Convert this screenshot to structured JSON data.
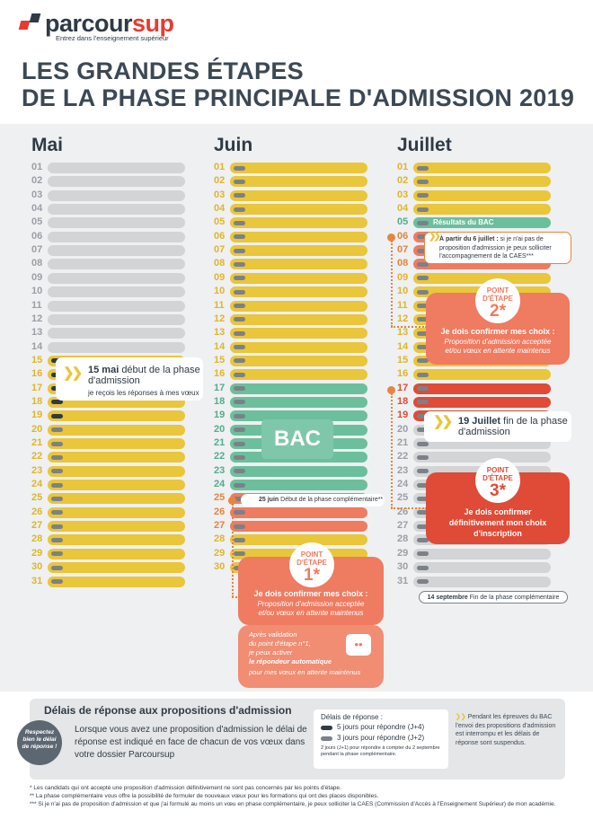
{
  "header": {
    "logo_part1": "parcour",
    "logo_part2": "sup",
    "logo_tagline": "Entrez dans l'enseignement supérieur",
    "title_line1": "LES GRANDES ÉTAPES",
    "title_line2": "DE LA PHASE PRINCIPALE D'ADMISSION 2019"
  },
  "colors": {
    "grey": "#d2d4d6",
    "dark_grey": "#7b8189",
    "yellow": "#e9c63a",
    "green": "#6cbf9c",
    "salmon": "#ef7b60",
    "red": "#df4b36",
    "text": "#2f3a45"
  },
  "months": [
    {
      "name": "Mai",
      "days": [
        "01",
        "02",
        "03",
        "04",
        "05",
        "06",
        "07",
        "08",
        "09",
        "10",
        "11",
        "12",
        "13",
        "14",
        "15",
        "16",
        "17",
        "18",
        "19",
        "20",
        "21",
        "22",
        "23",
        "24",
        "25",
        "26",
        "27",
        "28",
        "29",
        "30",
        "31"
      ],
      "status": [
        "grey",
        "grey",
        "grey",
        "grey",
        "grey",
        "grey",
        "grey",
        "grey",
        "grey",
        "grey",
        "grey",
        "grey",
        "grey",
        "grey",
        "yellow",
        "yellow",
        "yellow",
        "yellow",
        "yellow",
        "yellow",
        "yellow",
        "yellow",
        "yellow",
        "yellow",
        "yellow",
        "yellow",
        "yellow",
        "yellow",
        "yellow",
        "yellow",
        "yellow"
      ]
    },
    {
      "name": "Juin",
      "days": [
        "01",
        "02",
        "03",
        "04",
        "05",
        "06",
        "07",
        "08",
        "09",
        "10",
        "11",
        "12",
        "13",
        "14",
        "15",
        "16",
        "17",
        "18",
        "19",
        "20",
        "21",
        "22",
        "23",
        "24",
        "25",
        "26",
        "27",
        "28",
        "29",
        "30"
      ],
      "status": [
        "yellow",
        "yellow",
        "yellow",
        "yellow",
        "yellow",
        "yellow",
        "yellow",
        "yellow",
        "yellow",
        "yellow",
        "yellow",
        "yellow",
        "yellow",
        "yellow",
        "yellow",
        "yellow",
        "green",
        "green",
        "green",
        "green",
        "green",
        "green",
        "green",
        "green",
        "salmon",
        "salmon",
        "salmon",
        "yellow",
        "yellow",
        "yellow"
      ]
    },
    {
      "name": "Juillet",
      "days": [
        "01",
        "02",
        "03",
        "04",
        "05",
        "06",
        "07",
        "08",
        "09",
        "10",
        "11",
        "12",
        "13",
        "14",
        "15",
        "16",
        "17",
        "18",
        "19",
        "20",
        "21",
        "22",
        "23",
        "24",
        "25",
        "26",
        "27",
        "28",
        "29",
        "30",
        "31"
      ],
      "status": [
        "yellow",
        "yellow",
        "yellow",
        "yellow",
        "green",
        "salmon",
        "salmon",
        "salmon",
        "yellow",
        "yellow",
        "yellow",
        "yellow",
        "yellow",
        "yellow",
        "yellow",
        "yellow",
        "red",
        "red",
        "red",
        "grey",
        "grey",
        "grey",
        "grey",
        "grey",
        "grey",
        "grey",
        "grey",
        "grey",
        "grey",
        "grey",
        "grey"
      ]
    }
  ],
  "bac_label": "BAC",
  "callouts": {
    "may15_date": "15 mai",
    "may15_title_rest": "début de la phase",
    "may15_title_line2": "d'admission",
    "may15_sub": "je reçois les réponses à mes vœux",
    "jun25_date": "25 juin",
    "jun25_text": "Début de la phase complémentaire**",
    "jul5_text": "Résultats du BAC",
    "jul6_date": "À partir du 6 juillet :",
    "jul6_text": "si je n'ai pas de proposition d'admission je peux solliciter l'accompagnement de la CAES***",
    "jul19_date": "19 Juillet",
    "jul19_title_rest": "fin de la phase",
    "jul19_title_line2": "d'admission",
    "sep14_date": "14 septembre",
    "sep14_text": "Fin de la phase complémentaire"
  },
  "steps": {
    "badge_label_line1": "POINT",
    "badge_label_line2": "D'ÉTAPE",
    "step1": {
      "number": "1*",
      "title": "Je dois confirmer mes choix :",
      "sub": "Proposition d'admission acceptée et/ou vœux en attente maintenus",
      "extra_line1": "Après validation",
      "extra_line2": "du point d'étape n°1,",
      "extra_line3": "je peux activer",
      "extra_bold": "le répondeur automatique",
      "extra_line4": "pour mes vœux en attente maintenus"
    },
    "step2": {
      "number": "2*",
      "title": "Je dois confirmer mes choix :",
      "sub": "Proposition d'admission acceptée et/ou vœux en attente maintenus"
    },
    "step3": {
      "number": "3*",
      "title": "Je dois confirmer définitivement mon choix d'inscription"
    }
  },
  "response_panel": {
    "title": "Délais de réponse aux propositions d'admission",
    "stamp": "Respectez bien le délai de réponse !",
    "body": "Lorsque vous avez une proposition d'admission le délai de réponse est indiqué en face de chacun de vos vœux dans votre dossier Parcoursup",
    "legend_title": "Délais de réponse :",
    "legend_5": "5 jours pour répondre (J+4)",
    "legend_3": "3 jours pour répondre (J+2)",
    "legend_2": "2 jours (J+1) pour répondre à compter du 2 septembre pendant la phase complémentaire.",
    "side_note": "Pendant les épreuves du BAC l'envoi des propositions d'admission est interrompu et les délais de réponse sont suspendus."
  },
  "footnotes": {
    "f1": "* Les candidats qui ont accepté une proposition d'admission définitivement ne sont pas concernés par les points d'étape.",
    "f2": "** La phase complémentaire vous offre la possibilité de formuler de nouveaux vœux pour les formations qui ont des places disponibles.",
    "f3": "*** Si je n'ai pas de proposition d'admission et que j'ai formulé au moins un vœu en phase complémentaire, je peux solliciter la CAES (Commission d'Accès à l'Enseignement Supérieur) de mon académie."
  }
}
